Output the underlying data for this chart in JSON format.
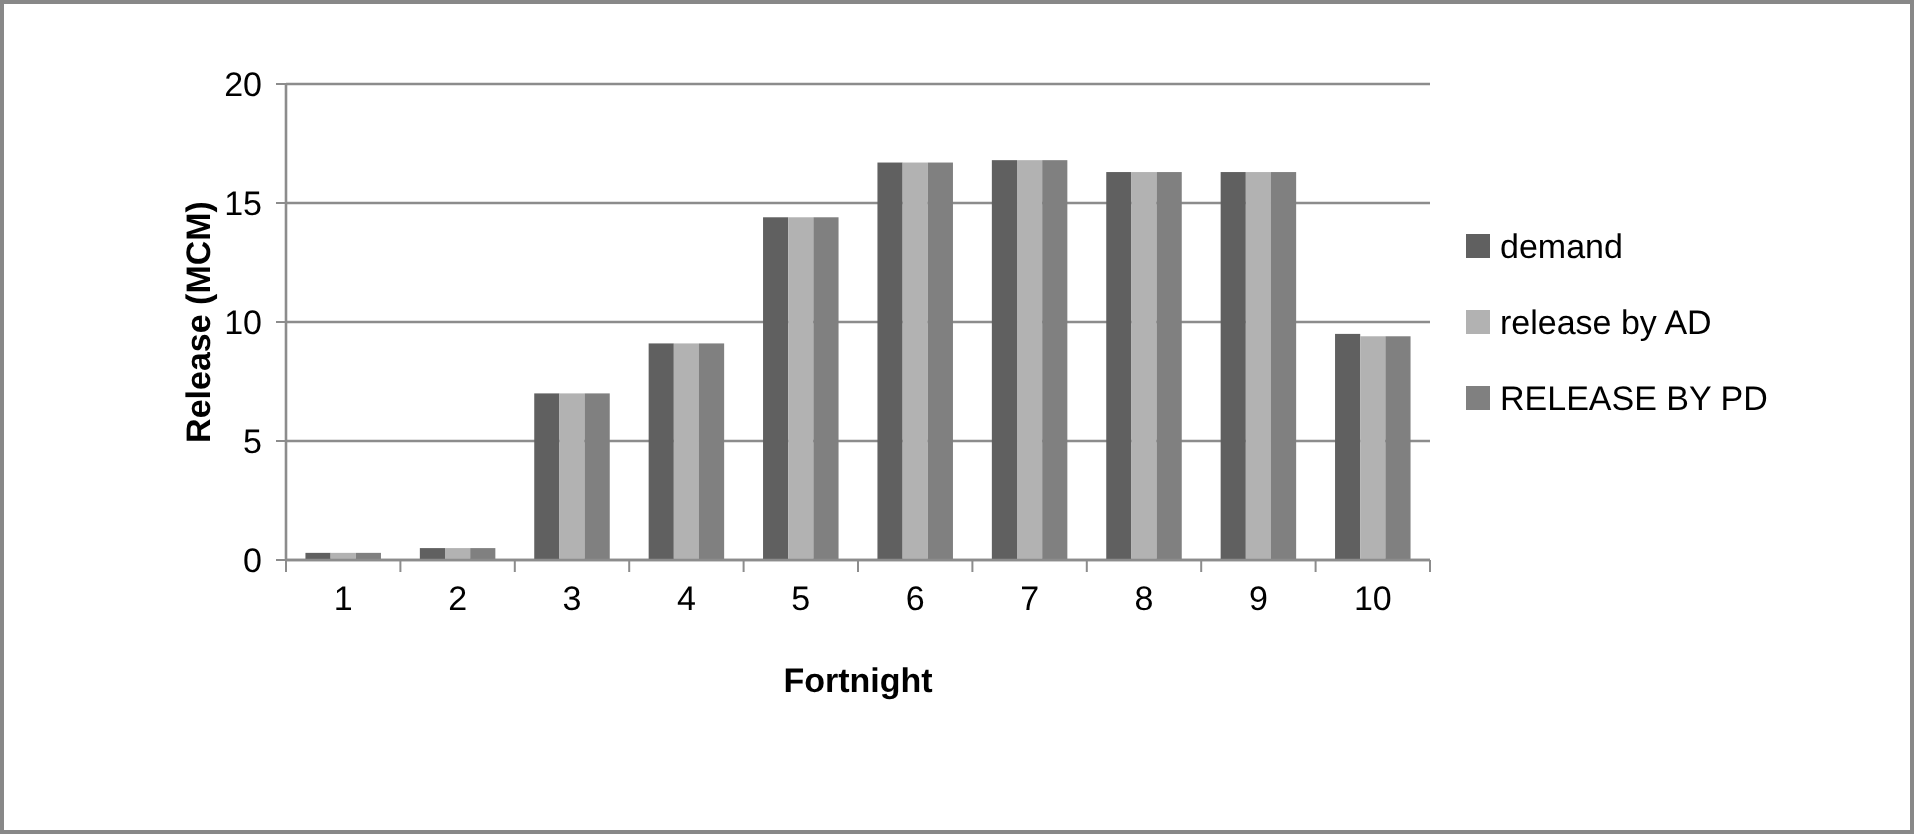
{
  "chart_data": {
    "type": "bar",
    "xlabel": "Fortnight",
    "ylabel": "Release (MCM)",
    "categories": [
      "1",
      "2",
      "3",
      "4",
      "5",
      "6",
      "7",
      "8",
      "9",
      "10"
    ],
    "series": [
      {
        "name": "demand",
        "color": "#606060",
        "values": [
          0.3,
          0.5,
          7.0,
          9.1,
          14.4,
          16.7,
          16.8,
          16.3,
          16.3,
          9.5
        ]
      },
      {
        "name": "release by AD",
        "color": "#b2b2b2",
        "values": [
          0.3,
          0.5,
          7.0,
          9.1,
          14.4,
          16.7,
          16.8,
          16.3,
          16.3,
          9.4
        ]
      },
      {
        "name": "RELEASE BY PD",
        "color": "#808080",
        "values": [
          0.3,
          0.5,
          7.0,
          9.1,
          14.4,
          16.7,
          16.8,
          16.3,
          16.3,
          9.4
        ]
      }
    ],
    "ylim": [
      0,
      20
    ],
    "yticks": [
      0,
      5,
      10,
      15,
      20
    ],
    "grid": "y",
    "legend": "right"
  }
}
